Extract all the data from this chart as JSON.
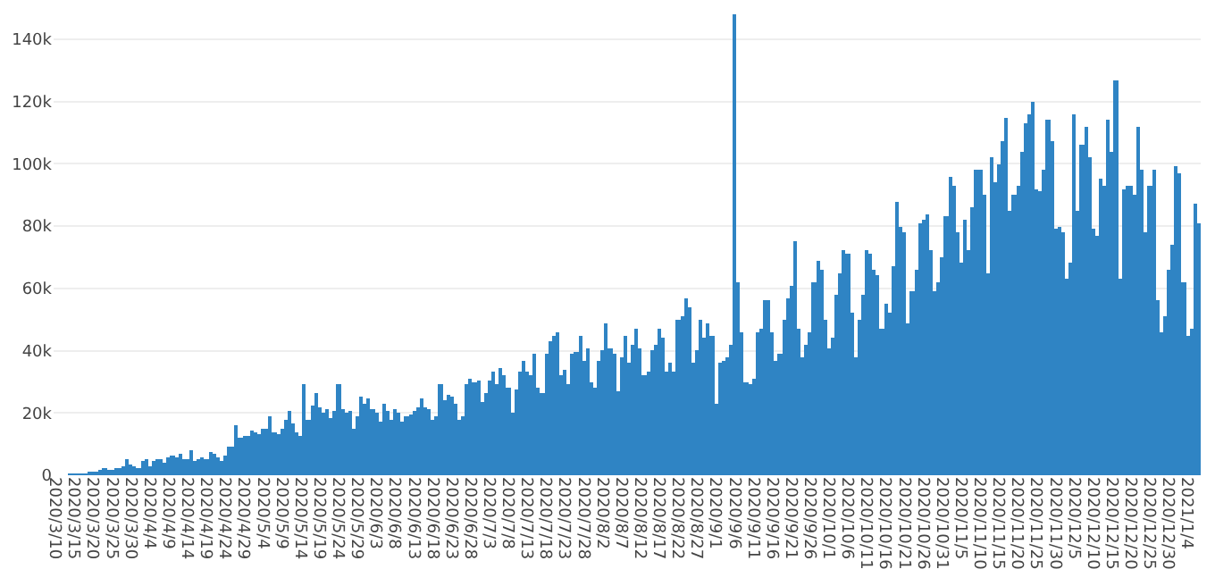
{
  "chart_data": {
    "type": "bar",
    "color": "#2f84c4",
    "grid": "y",
    "categories": [
      "2020/3/10",
      null,
      null,
      null,
      null,
      "2020/3/15",
      null,
      null,
      null,
      null,
      "2020/3/20",
      null,
      null,
      null,
      null,
      "2020/3/25",
      null,
      null,
      null,
      null,
      "2020/3/30",
      null,
      null,
      null,
      null,
      "2020/4/4",
      null,
      null,
      null,
      null,
      "2020/4/9",
      null,
      null,
      null,
      null,
      "2020/4/14",
      null,
      null,
      null,
      null,
      "2020/4/19",
      null,
      null,
      null,
      null,
      "2020/4/24",
      null,
      null,
      null,
      null,
      "2020/4/29",
      null,
      null,
      null,
      null,
      "2020/5/4",
      null,
      null,
      null,
      null,
      "2020/5/9",
      null,
      null,
      null,
      null,
      "2020/5/14",
      null,
      null,
      null,
      null,
      "2020/5/19",
      null,
      null,
      null,
      null,
      "2020/5/24",
      null,
      null,
      null,
      null,
      "2020/5/29",
      null,
      null,
      null,
      null,
      "2020/6/3",
      null,
      null,
      null,
      null,
      "2020/6/8",
      null,
      null,
      null,
      null,
      "2020/6/13",
      null,
      null,
      null,
      null,
      "2020/6/18",
      null,
      null,
      null,
      null,
      "2020/6/23",
      null,
      null,
      null,
      null,
      "2020/6/28",
      null,
      null,
      null,
      null,
      "2020/7/3",
      null,
      null,
      null,
      null,
      "2020/7/8",
      null,
      null,
      null,
      null,
      "2020/7/13",
      null,
      null,
      null,
      null,
      "2020/7/18",
      null,
      null,
      null,
      null,
      "2020/7/23",
      null,
      null,
      null,
      null,
      "2020/7/28",
      null,
      null,
      null,
      null,
      "2020/8/2",
      null,
      null,
      null,
      null,
      "2020/8/7",
      null,
      null,
      null,
      null,
      "2020/8/12",
      null,
      null,
      null,
      null,
      "2020/8/17",
      null,
      null,
      null,
      null,
      "2020/8/22",
      null,
      null,
      null,
      null,
      "2020/8/27",
      null,
      null,
      null,
      null,
      "2020/9/1",
      null,
      null,
      null,
      null,
      "2020/9/6",
      null,
      null,
      null,
      null,
      "2020/9/11",
      null,
      null,
      null,
      null,
      "2020/9/16",
      null,
      null,
      null,
      null,
      "2020/9/21",
      null,
      null,
      null,
      null,
      "2020/9/26",
      null,
      null,
      null,
      null,
      "2020/10/1",
      null,
      null,
      null,
      null,
      "2020/10/6",
      null,
      null,
      null,
      null,
      "2020/10/11",
      null,
      null,
      null,
      null,
      "2020/10/16",
      null,
      null,
      null,
      null,
      "2020/10/21",
      null,
      null,
      null,
      null,
      "2020/10/26",
      null,
      null,
      null,
      null,
      "2020/10/31",
      null,
      null,
      null,
      null,
      "2020/11/5",
      null,
      null,
      null,
      null,
      "2020/11/10",
      null,
      null,
      null,
      null,
      "2020/11/15",
      null,
      null,
      null,
      null,
      "2020/11/20",
      null,
      null,
      null,
      null,
      "2020/11/25",
      null,
      null,
      null,
      null,
      "2020/11/30",
      null,
      null,
      null,
      null,
      "2020/12/5",
      null,
      null,
      null,
      null,
      "2020/12/10",
      null,
      null,
      null,
      null,
      "2020/12/15",
      null,
      null,
      null,
      null,
      "2020/12/20",
      null,
      null,
      null,
      null,
      "2020/12/25",
      null,
      null,
      null,
      null,
      "2020/12/30",
      null,
      null,
      null,
      null,
      "2021/1/4",
      null,
      null,
      null
    ],
    "values": [
      0,
      0,
      0,
      0,
      500,
      500,
      500,
      500,
      500,
      1000,
      1200,
      1400,
      1500,
      2100,
      1900,
      1500,
      2200,
      2400,
      2800,
      4900,
      3500,
      2600,
      2400,
      4700,
      5300,
      3100,
      4600,
      5200,
      5100,
      4000,
      5600,
      6200,
      5900,
      6600,
      4900,
      5000,
      7800,
      4700,
      4900,
      6000,
      5300,
      7200,
      6800,
      5600,
      4800,
      6300,
      9000,
      9200,
      16000,
      12000,
      12800,
      12500,
      14500,
      14000,
      13000,
      15000,
      15200,
      19000,
      13700,
      13200,
      14800,
      17500,
      20500,
      16500,
      13500,
      12800,
      29000,
      17500,
      22500,
      26500,
      22000,
      20000,
      21000,
      18500,
      20800,
      29000,
      21000,
      20000,
      20500,
      15000,
      19000,
      25000,
      23000,
      24500,
      21000,
      20000,
      17000,
      23000,
      20500,
      18000,
      21000,
      20000,
      17000,
      19000,
      19500,
      20500,
      22000,
      24500,
      22000,
      21000,
      18000,
      19000,
      29000,
      24000,
      26000,
      25000,
      23000,
      18000,
      19000,
      29000,
      31000,
      30000,
      30500,
      23500,
      26500,
      30500,
      33000,
      29000,
      34500,
      32000,
      28000,
      20000,
      27500,
      33000,
      37000,
      33000,
      32000,
      39000,
      28000,
      26500,
      39000,
      43000,
      44500,
      46000,
      32000,
      34000,
      29500,
      39000,
      39500,
      44500,
      37000,
      41000,
      30000,
      28000,
      37000,
      40000,
      49000,
      41000,
      39000,
      27000,
      38000,
      45000,
      36000,
      42000,
      47000,
      41000,
      32000,
      33000,
      40000,
      42000,
      47000,
      44000,
      33000,
      36000,
      33000,
      50000,
      51000,
      57000,
      54000,
      36000,
      40000,
      50000,
      44000,
      49000,
      45000,
      23000,
      36000,
      37000,
      38000,
      42000,
      148000,
      62000,
      46000,
      30000,
      29000,
      31000,
      46000,
      47000,
      56000,
      56000,
      46000,
      37000,
      39000,
      50000,
      57000,
      61000,
      75000,
      47000,
      38000,
      42000,
      46000,
      62000,
      69000,
      66000,
      50000,
      41000,
      44000,
      58000,
      65000,
      72000,
      71000,
      52000,
      38000,
      50000,
      58000,
      72000,
      71000,
      66000,
      64000,
      47000,
      55000,
      52000,
      67000,
      88000,
      80000,
      78000,
      49000,
      59000,
      66000,
      81000,
      82000,
      84000,
      72000,
      59000,
      62000,
      70000,
      83000,
      96000,
      93000,
      78000,
      68000,
      82000,
      72000,
      86000,
      98000,
      98000,
      90000,
      65000,
      102000,
      94000,
      100000,
      107000,
      115000,
      85000,
      90000,
      93000,
      104000,
      113000,
      116000,
      120000,
      92000,
      91000,
      98000,
      114000,
      107000,
      79000,
      80000,
      78000,
      63000,
      68000,
      116000,
      85000,
      106000,
      112000,
      102000,
      79000,
      77000,
      95000,
      93000,
      114000,
      104000,
      127000,
      63000,
      92000,
      93000,
      93000,
      90000,
      112000,
      98000,
      78000,
      93000,
      98000,
      56000,
      46000,
      51000,
      66000,
      74000,
      99000,
      97000,
      62000,
      45000,
      47000,
      87000,
      81000
    ],
    "ylim": [
      0,
      148000
    ],
    "yticks": [
      0,
      {
        "value": 20000,
        "label": "20k"
      },
      {
        "value": 40000,
        "label": "40k"
      },
      {
        "value": 60000,
        "label": "60k"
      },
      {
        "value": 80000,
        "label": "80k"
      },
      {
        "value": 100000,
        "label": "100k"
      },
      {
        "value": 120000,
        "label": "120k"
      },
      {
        "value": 140000,
        "label": "140k"
      }
    ]
  }
}
